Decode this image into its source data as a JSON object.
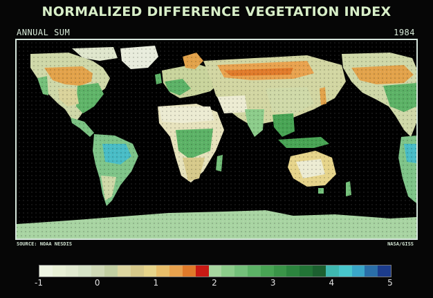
{
  "header": {
    "title": "NORMALIZED DIFFERENCE VEGETATION INDEX",
    "subtitle_left": "ANNUAL SUM",
    "year": "1984"
  },
  "footer": {
    "source": "SOURCE: NOAA NESDIS",
    "credit": "NASA/GISS"
  },
  "legend": {
    "ticks": [
      "-1",
      "0",
      "1",
      "2",
      "3",
      "4",
      "5"
    ],
    "colors": [
      "#eef4e2",
      "#e8f0d6",
      "#e1ead0",
      "#d6e3c6",
      "#cfd9b6",
      "#c2cfa2",
      "#dcd6a0",
      "#d6c98a",
      "#e6d48a",
      "#e8be6a",
      "#e8a24e",
      "#e07a2a",
      "#c81a14",
      "#a8d6a0",
      "#8ccc8a",
      "#74c07a",
      "#5cb266",
      "#48a454",
      "#3a9448",
      "#2c843e",
      "#227436",
      "#1c6030",
      "#3fb8b0",
      "#48c6cc",
      "#3aa6c8",
      "#2a6ea8",
      "#1c3c8c"
    ]
  }
}
